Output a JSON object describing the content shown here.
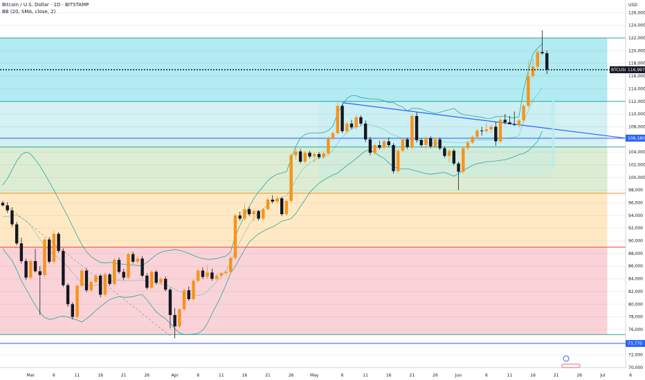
{
  "header": {
    "title": "Bitcoin / U.S. Dollar · 1D · BITSTAMP",
    "indicator": "BB (20, SMA, close, 2)"
  },
  "axis": {
    "currency": "USD"
  },
  "colors": {
    "up": "#f7931a",
    "down": "#131722",
    "bb": "#26a69a",
    "trend": "#2962ff"
  },
  "chart_data": {
    "type": "candlestick",
    "title": "Bitcoin / U.S. Dollar · 1D · BITSTAMP",
    "ylim": [
      70000,
      128000
    ],
    "yticks": [
      70000,
      72000,
      74000,
      76000,
      78000,
      80000,
      82000,
      84000,
      86000,
      88000,
      90000,
      92000,
      94000,
      96000,
      98000,
      100000,
      102000,
      104000,
      106000,
      108000,
      110000,
      112000,
      114000,
      116000,
      118000,
      120000,
      122000,
      124000,
      126000
    ],
    "xticks": [
      "Mar",
      "6",
      "11",
      "16",
      "21",
      "26",
      "Apr",
      "6",
      "11",
      "16",
      "21",
      "26",
      "May",
      "6",
      "11",
      "16",
      "21",
      "26",
      "Jun",
      "6",
      "11",
      "16",
      "21",
      "26",
      "Jul",
      "6",
      "11",
      "16",
      "21",
      "26"
    ],
    "zones": [
      {
        "from": 112000,
        "to": 122000,
        "color": "#b2ebf2"
      },
      {
        "from": 104800,
        "to": 112000,
        "color": "#d3f0f2"
      },
      {
        "from": 97500,
        "to": 104800,
        "color": "#dcedd3"
      },
      {
        "from": 89000,
        "to": 97500,
        "color": "#ffe9c4"
      },
      {
        "from": 75200,
        "to": 89000,
        "color": "#f9d3d8"
      }
    ],
    "levels": [
      {
        "value": 122000,
        "color": "#26a69a"
      },
      {
        "value": 112000,
        "color": "#26a69a"
      },
      {
        "value": 106200,
        "color": "#2962ff"
      },
      {
        "value": 104800,
        "color": "#26a69a"
      },
      {
        "value": 97500,
        "color": "#f7931a"
      },
      {
        "value": 89000,
        "color": "#f23645"
      },
      {
        "value": 75200,
        "color": "#26a69a"
      },
      {
        "value": 73800,
        "color": "#2962ff"
      }
    ],
    "trendline": [
      [
        111800,
        106200
      ]
    ],
    "current_price": 116997,
    "price_tag": {
      "symbol": "BTCUSD",
      "value": "116,997"
    },
    "level_tags": [
      {
        "value": 106200,
        "label": "106,180"
      },
      {
        "value": 73800,
        "label": "73,770"
      }
    ],
    "candles": [
      [
        96000,
        96300,
        95400,
        95600
      ],
      [
        95600,
        96100,
        94400,
        94800
      ],
      [
        94800,
        95300,
        92200,
        92600
      ],
      [
        92600,
        93000,
        89300,
        89600
      ],
      [
        89600,
        90500,
        86400,
        86800
      ],
      [
        86800,
        87200,
        83800,
        84200
      ],
      [
        84200,
        87100,
        83900,
        86800
      ],
      [
        86800,
        88700,
        85000,
        85200
      ],
      [
        85200,
        86000,
        78300,
        84600
      ],
      [
        84600,
        90500,
        84200,
        90200
      ],
      [
        90200,
        90600,
        86400,
        86700
      ],
      [
        86700,
        91600,
        86300,
        91100
      ],
      [
        91100,
        91400,
        88100,
        88400
      ],
      [
        88400,
        88800,
        82700,
        83000
      ],
      [
        83000,
        83300,
        79600,
        80000
      ],
      [
        80000,
        80300,
        77600,
        78000
      ],
      [
        78000,
        83200,
        77600,
        82900
      ],
      [
        82900,
        85600,
        82600,
        85300
      ],
      [
        85300,
        85700,
        81900,
        82200
      ],
      [
        82200,
        83800,
        81900,
        83500
      ],
      [
        83500,
        84800,
        83200,
        84500
      ],
      [
        84500,
        84800,
        81100,
        81500
      ],
      [
        81500,
        85000,
        81200,
        84700
      ],
      [
        84700,
        84900,
        82900,
        83200
      ],
      [
        83200,
        87300,
        82900,
        87000
      ],
      [
        87000,
        87400,
        84800,
        85100
      ],
      [
        85100,
        85600,
        83800,
        84200
      ],
      [
        84200,
        88200,
        83900,
        87900
      ],
      [
        87900,
        88300,
        86400,
        86700
      ],
      [
        86700,
        87600,
        86400,
        87200
      ],
      [
        87200,
        87600,
        84200,
        84500
      ],
      [
        84500,
        84900,
        82300,
        82600
      ],
      [
        82600,
        85400,
        82300,
        85100
      ],
      [
        85100,
        85400,
        83100,
        83400
      ],
      [
        83400,
        84300,
        83100,
        84000
      ],
      [
        84000,
        84400,
        82000,
        82300
      ],
      [
        82300,
        82600,
        76200,
        78300
      ],
      [
        78300,
        79400,
        74600,
        76500
      ],
      [
        76500,
        79400,
        76200,
        79200
      ],
      [
        79200,
        82500,
        78900,
        82200
      ],
      [
        82200,
        82800,
        80500,
        80800
      ],
      [
        80800,
        84000,
        80500,
        83700
      ],
      [
        83700,
        85600,
        83400,
        85300
      ],
      [
        85300,
        85800,
        84000,
        84300
      ],
      [
        84300,
        86200,
        84000,
        85000
      ],
      [
        85000,
        85600,
        83700,
        84000
      ],
      [
        84000,
        84800,
        83700,
        84500
      ],
      [
        84500,
        85200,
        84200,
        84900
      ],
      [
        84900,
        85300,
        84500,
        85100
      ],
      [
        85100,
        87600,
        84800,
        87300
      ],
      [
        87300,
        94300,
        87000,
        94000
      ],
      [
        94000,
        94600,
        93200,
        93500
      ],
      [
        93500,
        95800,
        93200,
        95000
      ],
      [
        95000,
        95300,
        93900,
        94200
      ],
      [
        94200,
        95000,
        93000,
        94700
      ],
      [
        94700,
        94900,
        93200,
        93500
      ],
      [
        93500,
        95200,
        93200,
        95000
      ],
      [
        95000,
        96800,
        94700,
        96500
      ],
      [
        96500,
        97200,
        95900,
        96200
      ],
      [
        96200,
        97100,
        95900,
        96700
      ],
      [
        96700,
        96900,
        93900,
        94200
      ],
      [
        94200,
        96600,
        93900,
        96300
      ],
      [
        96300,
        103800,
        96000,
        103500
      ],
      [
        103500,
        104600,
        102800,
        104100
      ],
      [
        104100,
        104500,
        102200,
        102500
      ],
      [
        102500,
        104200,
        102200,
        103900
      ],
      [
        103900,
        104200,
        103000,
        103300
      ],
      [
        103300,
        104000,
        102400,
        103700
      ],
      [
        103700,
        104000,
        102900,
        103200
      ],
      [
        103200,
        104100,
        102900,
        103800
      ],
      [
        103800,
        106500,
        103500,
        106200
      ],
      [
        106200,
        107300,
        105900,
        107000
      ],
      [
        107000,
        112000,
        106700,
        111300
      ],
      [
        111300,
        111600,
        107000,
        107300
      ],
      [
        107300,
        108800,
        107000,
        108500
      ],
      [
        108500,
        109100,
        107600,
        107900
      ],
      [
        107900,
        109800,
        107600,
        109500
      ],
      [
        109500,
        109800,
        108200,
        108500
      ],
      [
        108500,
        109000,
        105600,
        106000
      ],
      [
        106000,
        106400,
        103500,
        103900
      ],
      [
        103900,
        105400,
        103600,
        105100
      ],
      [
        105100,
        105800,
        104400,
        104700
      ],
      [
        104700,
        106000,
        104400,
        105700
      ],
      [
        105700,
        106300,
        104800,
        105100
      ],
      [
        105100,
        105400,
        100600,
        101000
      ],
      [
        101000,
        104500,
        100700,
        104200
      ],
      [
        104200,
        106300,
        103900,
        106000
      ],
      [
        106000,
        106300,
        104500,
        104800
      ],
      [
        104800,
        110000,
        104500,
        109700
      ],
      [
        109700,
        110300,
        105500,
        105900
      ],
      [
        105900,
        106200,
        104800,
        105100
      ],
      [
        105100,
        106500,
        104500,
        106200
      ],
      [
        106200,
        106500,
        104600,
        104900
      ],
      [
        104900,
        106300,
        104600,
        106000
      ],
      [
        106000,
        106300,
        104300,
        104600
      ],
      [
        104600,
        104900,
        103100,
        103400
      ],
      [
        103400,
        104500,
        102400,
        104200
      ],
      [
        104200,
        104500,
        101900,
        102200
      ],
      [
        102200,
        102500,
        98000,
        100900
      ],
      [
        100900,
        104900,
        100600,
        104600
      ],
      [
        104600,
        105800,
        104300,
        105500
      ],
      [
        105500,
        106700,
        105200,
        106400
      ],
      [
        106400,
        107700,
        106100,
        107400
      ],
      [
        107400,
        108000,
        106600,
        107300
      ],
      [
        107300,
        108600,
        107000,
        107600
      ],
      [
        107600,
        108300,
        107000,
        108000
      ],
      [
        108000,
        108700,
        105000,
        105700
      ],
      [
        105700,
        109400,
        105400,
        109100
      ],
      [
        109100,
        110000,
        108400,
        108700
      ],
      [
        108700,
        109700,
        108400,
        108400
      ],
      [
        108400,
        110400,
        108100,
        108300
      ],
      [
        108300,
        109300,
        107900,
        109000
      ],
      [
        109000,
        111600,
        108700,
        111300
      ],
      [
        111300,
        118500,
        111000,
        116000
      ],
      [
        116000,
        118700,
        115700,
        117500
      ],
      [
        117500,
        120100,
        117100,
        119800
      ],
      [
        119800,
        123200,
        119400,
        119600
      ],
      [
        119600,
        120000,
        116300,
        117000
      ]
    ],
    "bb_upper": [
      98800,
      99800,
      101200,
      102600,
      103600,
      104000,
      103700,
      102800,
      101800,
      100600,
      99300,
      98000,
      96600,
      95200,
      93800,
      92300,
      90800,
      89400,
      88300,
      87500,
      87000,
      86600,
      86500,
      86600,
      86500,
      86400,
      86300,
      86200,
      86200,
      86100,
      86100,
      86600,
      87200,
      87800,
      88200,
      88400,
      88500,
      88600,
      88500,
      88300,
      88000,
      87700,
      87400,
      87200,
      87100,
      87100,
      87200,
      87400,
      87600,
      88300,
      90700,
      92400,
      93900,
      95400,
      96700,
      97700,
      98600,
      99500,
      100100,
      100500,
      100700,
      100900,
      102900,
      104900,
      106200,
      106800,
      107000,
      107000,
      107000,
      107100,
      107400,
      108100,
      110100,
      111400,
      112500,
      112900,
      112900,
      112600,
      112500,
      112400,
      112400,
      112300,
      112100,
      111800,
      111800,
      111400,
      111100,
      110500,
      110900,
      110900,
      110800,
      110500,
      110300,
      110100,
      110300,
      110500,
      110700,
      110900,
      110300,
      109900,
      109800,
      109700,
      109600,
      109500,
      109300,
      109300,
      109600,
      109600,
      109700,
      109500,
      109400,
      109600,
      113900,
      116800,
      119500,
      120400,
      121100
    ],
    "bb_lower": [
      88800,
      87800,
      86900,
      85400,
      83700,
      82400,
      81100,
      79800,
      78700,
      77900,
      77600,
      77700,
      78000,
      78100,
      78000,
      77700,
      77500,
      77200,
      77700,
      78300,
      79000,
      79600,
      80200,
      80700,
      81000,
      81200,
      81100,
      81100,
      81200,
      81400,
      81500,
      80700,
      79700,
      78800,
      78200,
      77700,
      77000,
      76100,
      75500,
      75200,
      75200,
      75300,
      75400,
      75900,
      77000,
      78500,
      79900,
      81400,
      83100,
      84900,
      86000,
      87300,
      88600,
      89800,
      90500,
      91100,
      91500,
      91900,
      92200,
      92600,
      93100,
      93300,
      93500,
      94300,
      95400,
      96500,
      97600,
      98400,
      99100,
      99600,
      100000,
      100400,
      100700,
      101300,
      101900,
      102400,
      103000,
      103600,
      104200,
      104300,
      103900,
      103400,
      103000,
      102300,
      101600,
      101500,
      101300,
      101400,
      101200,
      101000,
      100800,
      100600,
      100500,
      100600,
      100700,
      100800,
      100500,
      100200,
      100600,
      101100,
      101500,
      101900,
      102200,
      102300,
      102500,
      102500,
      102600,
      102700,
      102800,
      103000,
      103300,
      103600,
      103800,
      104200,
      104900,
      105700,
      107300
    ],
    "bb_basis": [
      93800,
      93800,
      94050,
      94000,
      93650,
      93200,
      92400,
      91300,
      90250,
      89250,
      88450,
      87850,
      87300,
      86650,
      85900,
      85000,
      84150,
      83300,
      83000,
      82900,
      83000,
      83100,
      83350,
      83650,
      83750,
      83800,
      83700,
      83650,
      83700,
      83750,
      83800,
      83650,
      83450,
      83300,
      83200,
      83050,
      82750,
      82350,
      82000,
      81750,
      81600,
      81500,
      81400,
      81550,
      82050,
      82800,
      83550,
      84400,
      85350,
      86600,
      88350,
      89850,
      91250,
      92600,
      93600,
      94400,
      95050,
      95700,
      96150,
      96550,
      96900,
      97100,
      98200,
      99600,
      100800,
      101650,
      102300,
      102700,
      103050,
      103350,
      103700,
      104250,
      105400,
      106350,
      107200,
      107650,
      107950,
      108100,
      108350,
      108350,
      108150,
      107850,
      107550,
      107050,
      106700,
      106450,
      106200,
      105950,
      106050,
      105950,
      105800,
      105550,
      105400,
      105350,
      105500,
      105650,
      105600,
      105550,
      105450,
      105500,
      105650,
      105800,
      105900,
      105900,
      105900,
      105900,
      106100,
      106150,
      106250,
      106250,
      106350,
      106600,
      108850,
      110500,
      112200,
      113050,
      114200
    ]
  }
}
